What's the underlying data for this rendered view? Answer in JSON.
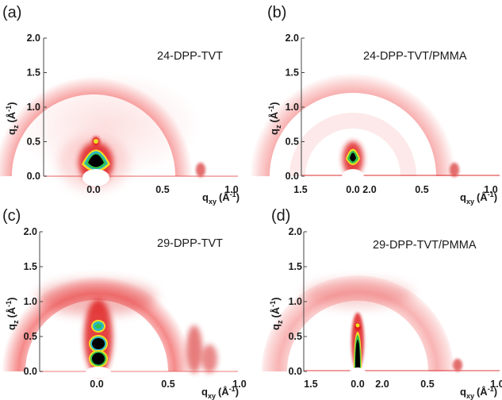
{
  "figure": {
    "panels": [
      {
        "label": "(a)",
        "title": "24-DPP-TVT"
      },
      {
        "label": "(b)",
        "title": "24-DPP-TVT/PMMA"
      },
      {
        "label": "(c)",
        "title": "29-DPP-TVT"
      },
      {
        "label": "(d)",
        "title": "29-DPP-TVT/PMMA"
      }
    ],
    "axes": {
      "y_main": "q",
      "y_sub": "z",
      "y_unit_open": "(Å",
      "y_unit_exp": "-1",
      "y_unit_close": ")",
      "x_main": "q",
      "x_sub": "xy",
      "x_unit_open": "(Å",
      "x_unit_exp": "-1",
      "x_unit_close": ")",
      "y_ticks": [
        "0.0",
        "0.5",
        "1.0",
        "1.5",
        "2.0"
      ],
      "x_ticks": [
        "0.0",
        "0.5",
        "1.0",
        "1.5",
        "2.0"
      ]
    }
  },
  "colors": {
    "ring": "#f04a4a",
    "peak_red": "#d81818",
    "peak_yellow": "#f0e020",
    "peak_cyan": "#2ab8c8",
    "peak_green": "#30c050",
    "core": "#000000"
  }
}
